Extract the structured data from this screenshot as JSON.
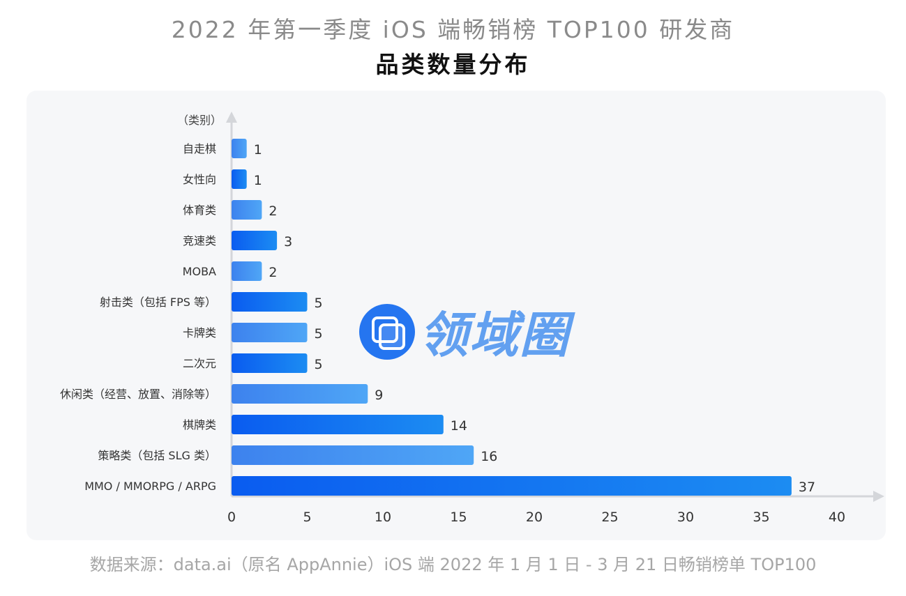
{
  "title_line1": "2022 年第一季度 iOS 端畅销榜 TOP100 研发商",
  "title_line2": "品类数量分布",
  "source": "数据来源：data.ai（原名 AppAnnie）iOS 端 2022 年 1 月 1 日 - 3 月 21 日畅销榜单 TOP100",
  "watermark_logo_text": "领域圈",
  "colors": {
    "dark_start": "#0a5cf0",
    "dark_end": "#1c8cf2",
    "light_start": "#3d82ee",
    "light_end": "#4fa6f6",
    "axis": "#d4d6da"
  },
  "chart_data": {
    "type": "bar",
    "orientation": "horizontal",
    "title": "品类数量分布",
    "ylabel": "（类别）",
    "xlabel": "",
    "xlim": [
      0,
      40
    ],
    "xticks": [
      0,
      5,
      10,
      15,
      20,
      25,
      30,
      35,
      40
    ],
    "grid": false,
    "categories": [
      "自走棋",
      "女性向",
      "体育类",
      "竞速类",
      "MOBA",
      "射击类（包括 FPS 等）",
      "卡牌类",
      "二次元",
      "休闲类（经营、放置、消除等）",
      "棋牌类",
      "策略类（包括 SLG 类）",
      "MMO / MMORPG / ARPG"
    ],
    "values": [
      1,
      1,
      2,
      3,
      2,
      5,
      5,
      5,
      9,
      14,
      16,
      37
    ],
    "shade": [
      "light",
      "dark",
      "light",
      "dark",
      "light",
      "dark",
      "light",
      "dark",
      "light",
      "dark",
      "light",
      "dark"
    ]
  }
}
